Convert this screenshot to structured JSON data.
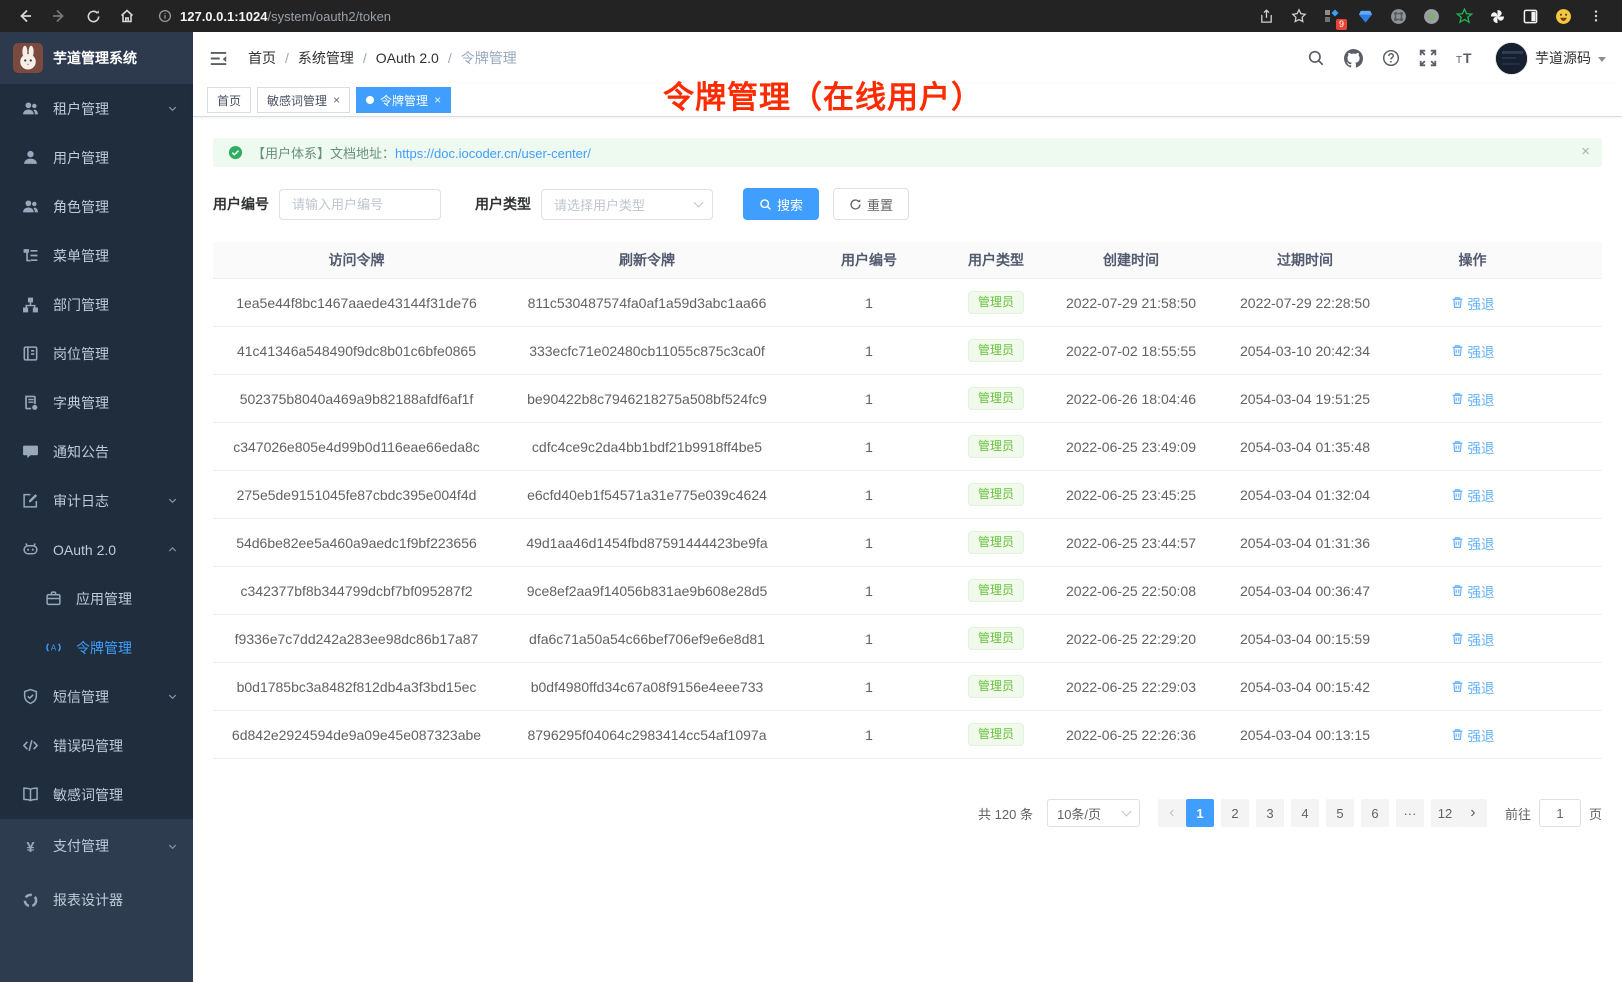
{
  "browser": {
    "url_host": "127.0.0.1:1024",
    "url_path": "/system/oauth2/token",
    "extension_badge": "9",
    "icons": [
      "back-icon",
      "forward-icon",
      "refresh-icon",
      "home-icon",
      "info-icon",
      "share-icon",
      "star-icon",
      "extension-blocks-icon",
      "gem-icon",
      "command-circle-icon",
      "record-circle-icon",
      "green-star-icon",
      "pinwheel-icon",
      "split-square-icon",
      "emoji-icon",
      "kebab-menu-icon"
    ]
  },
  "sidebar": {
    "logo_title": "芋道管理系统",
    "items": [
      {
        "icon": "users",
        "label": "租户管理",
        "chevron": "chevron-down"
      },
      {
        "icon": "user",
        "label": "用户管理"
      },
      {
        "icon": "users",
        "label": "角色管理"
      },
      {
        "icon": "tree",
        "label": "菜单管理"
      },
      {
        "icon": "org",
        "label": "部门管理"
      },
      {
        "icon": "idbadge",
        "label": "岗位管理"
      },
      {
        "icon": "dict",
        "label": "字典管理"
      },
      {
        "icon": "message",
        "label": "通知公告"
      },
      {
        "icon": "edit",
        "label": "审计日志",
        "chevron": "chevron-down"
      },
      {
        "icon": "robot",
        "label": "OAuth 2.0",
        "chevron": "chevron-up"
      },
      {
        "icon": "app",
        "label": "应用管理",
        "sub": true
      },
      {
        "icon": "signal",
        "label": "令牌管理",
        "sub": true,
        "active": true
      },
      {
        "icon": "shield",
        "label": "短信管理",
        "chevron": "chevron-down"
      },
      {
        "icon": "code",
        "label": "错误码管理"
      },
      {
        "icon": "book",
        "label": "敏感词管理"
      },
      {
        "icon": "yen",
        "label": "支付管理",
        "chevron": "chevron-down",
        "section": true
      },
      {
        "icon": "chart",
        "label": "报表设计器",
        "section": true
      }
    ]
  },
  "header": {
    "breadcrumb": [
      {
        "label": "首页"
      },
      {
        "label": "系统管理"
      },
      {
        "label": "OAuth 2.0"
      },
      {
        "label": "令牌管理",
        "last": true
      }
    ],
    "user_name": "芋道源码",
    "icons": [
      "search-icon",
      "github-icon",
      "help-icon",
      "fullscreen-icon",
      "font-size-icon",
      "avatar"
    ]
  },
  "tabs": [
    {
      "label": "首页"
    },
    {
      "label": "敏感词管理",
      "closable": true
    },
    {
      "label": "令牌管理",
      "closable": true,
      "active": true
    }
  ],
  "annotation": {
    "title": "令牌管理（在线用户）"
  },
  "alert": {
    "text": "【用户体系】文档地址：",
    "link": "https://doc.iocoder.cn/user-center/",
    "close_glyph": "×",
    "icon": "check-circle-icon"
  },
  "filters": {
    "user_id_label": "用户编号",
    "user_id_placeholder": "请输入用户编号",
    "user_type_label": "用户类型",
    "user_type_placeholder": "请选择用户类型",
    "search_label": "搜索",
    "reset_label": "重置"
  },
  "table": {
    "columns": [
      {
        "label": "访问令牌",
        "cls": "c-access"
      },
      {
        "label": "刷新令牌",
        "cls": "c-refresh"
      },
      {
        "label": "用户编号",
        "cls": "c-uid"
      },
      {
        "label": "用户类型",
        "cls": "c-utype"
      },
      {
        "label": "创建时间",
        "cls": "c-created"
      },
      {
        "label": "过期时间",
        "cls": "c-expire"
      },
      {
        "label": "操作",
        "cls": "c-action"
      }
    ],
    "action_label": "强退",
    "rows": [
      {
        "access_token": "1ea5e44f8bc1467aaede43144f31de76",
        "refresh_token": "811c530487574fa0af1a59d3abc1aa66",
        "user_id": "1",
        "user_type": "管理员",
        "create_time": "2022-07-29 21:58:50",
        "expire_time": "2022-07-29 22:28:50"
      },
      {
        "access_token": "41c41346a548490f9dc8b01c6bfe0865",
        "refresh_token": "333ecfc71e02480cb11055c875c3ca0f",
        "user_id": "1",
        "user_type": "管理员",
        "create_time": "2022-07-02 18:55:55",
        "expire_time": "2054-03-10 20:42:34"
      },
      {
        "access_token": "502375b8040a469a9b82188afdf6af1f",
        "refresh_token": "be90422b8c7946218275a508bf524fc9",
        "user_id": "1",
        "user_type": "管理员",
        "create_time": "2022-06-26 18:04:46",
        "expire_time": "2054-03-04 19:51:25"
      },
      {
        "access_token": "c347026e805e4d99b0d116eae66eda8c",
        "refresh_token": "cdfc4ce9c2da4bb1bdf21b9918ff4be5",
        "user_id": "1",
        "user_type": "管理员",
        "create_time": "2022-06-25 23:49:09",
        "expire_time": "2054-03-04 01:35:48"
      },
      {
        "access_token": "275e5de9151045fe87cbdc395e004f4d",
        "refresh_token": "e6cfd40eb1f54571a31e775e039c4624",
        "user_id": "1",
        "user_type": "管理员",
        "create_time": "2022-06-25 23:45:25",
        "expire_time": "2054-03-04 01:32:04"
      },
      {
        "access_token": "54d6be82ee5a460a9aedc1f9bf223656",
        "refresh_token": "49d1aa46d1454fbd87591444423be9fa",
        "user_id": "1",
        "user_type": "管理员",
        "create_time": "2022-06-25 23:44:57",
        "expire_time": "2054-03-04 01:31:36"
      },
      {
        "access_token": "c342377bf8b344799dcbf7bf095287f2",
        "refresh_token": "9ce8ef2aa9f14056b831ae9b608e28d5",
        "user_id": "1",
        "user_type": "管理员",
        "create_time": "2022-06-25 22:50:08",
        "expire_time": "2054-03-04 00:36:47"
      },
      {
        "access_token": "f9336e7c7dd242a283ee98dc86b17a87",
        "refresh_token": "dfa6c71a50a54c66bef706ef9e6e8d81",
        "user_id": "1",
        "user_type": "管理员",
        "create_time": "2022-06-25 22:29:20",
        "expire_time": "2054-03-04 00:15:59"
      },
      {
        "access_token": "b0d1785bc3a8482f812db4a3f3bd15ec",
        "refresh_token": "b0df4980ffd34c67a08f9156e4eee733",
        "user_id": "1",
        "user_type": "管理员",
        "create_time": "2022-06-25 22:29:03",
        "expire_time": "2054-03-04 00:15:42"
      },
      {
        "access_token": "6d842e2924594de9a09e45e087323abe",
        "refresh_token": "8796295f04064c2983414cc54af1097a",
        "user_id": "1",
        "user_type": "管理员",
        "create_time": "2022-06-25 22:26:36",
        "expire_time": "2054-03-04 00:13:15"
      }
    ]
  },
  "pagination": {
    "total_label": "共 120 条",
    "page_size": "10条/页",
    "prev_glyph": "‹",
    "next_glyph": "›",
    "pages": [
      {
        "label": "1",
        "active": true
      },
      {
        "label": "2"
      },
      {
        "label": "3"
      },
      {
        "label": "4"
      },
      {
        "label": "5"
      },
      {
        "label": "6"
      },
      {
        "label": "···"
      },
      {
        "label": "12"
      }
    ],
    "goto_label": "前往",
    "goto_value": "1",
    "page_unit": "页"
  },
  "colors": {
    "accent": "#409eff",
    "sidebar_bg": "#1f2d3d",
    "sidebar_section_bg": "#2e3c50",
    "success": "#67c23a",
    "alert_bg": "#eef9f0",
    "annotation_red": "#ff2b00"
  }
}
